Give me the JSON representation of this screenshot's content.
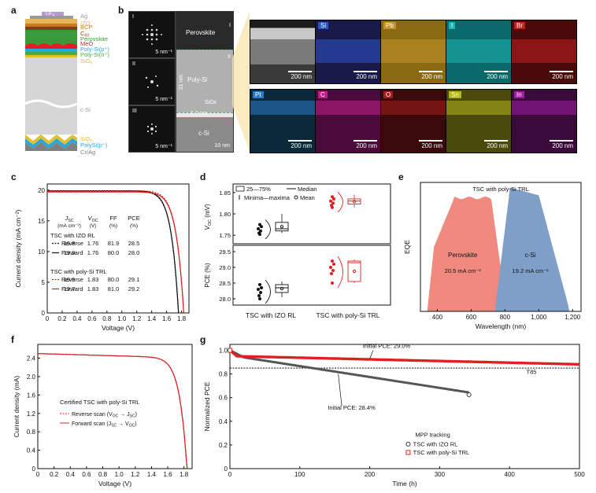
{
  "panel_labels": {
    "a": "a",
    "b": "b",
    "c": "c",
    "d": "d",
    "e": "e",
    "f": "f",
    "g": "g"
  },
  "panel_a": {
    "layers": [
      {
        "name": "LiF",
        "sub": "x",
        "color": "#b59ad6"
      },
      {
        "name": "Ag",
        "color": "#9a9a9a"
      },
      {
        "name": "IZO",
        "color": "#e7b45a"
      },
      {
        "name": "BCP",
        "color": "#cc7a22"
      },
      {
        "name": "C",
        "sub": "60",
        "color": "#8a3a1a"
      },
      {
        "name": "Perovskite",
        "color": "#3a9a3a"
      },
      {
        "name": "MeO",
        "color": "#e02020"
      },
      {
        "name": "Poly-Si(p⁺)",
        "color": "#2aa8d8"
      },
      {
        "name": "Poly-Si(n⁺)",
        "color": "#40b040"
      },
      {
        "name": "SiO",
        "sub": "x",
        "color": "#e0c030"
      },
      {
        "name": "c-Si",
        "color": "#999999"
      },
      {
        "name": "SiO",
        "sub": "x",
        "color": "#e0c030"
      },
      {
        "name": "PolySi(p⁺)",
        "color": "#2aa8d8"
      },
      {
        "name": "Cr/Ag",
        "color": "#808080"
      }
    ]
  },
  "panel_b": {
    "fft": [
      {
        "roman": "I",
        "scale": "5 nm⁻¹"
      },
      {
        "roman": "II",
        "scale": "5 nm⁻¹"
      },
      {
        "roman": "III",
        "scale": "5 nm⁻¹"
      }
    ],
    "tem": {
      "perovskite": "Perovskite",
      "polysi": "Poly-Si",
      "siox": "SiOx",
      "csi": "c-Si",
      "thick1": "31 nm",
      "thick2": "1.7 nm",
      "scale": "10 nm",
      "r1": "I",
      "r2": "II",
      "r3": "III"
    },
    "maps": [
      {
        "el": "",
        "scale": "200 nm",
        "bg": "#9a9a9a"
      },
      {
        "el": "Si",
        "scale": "200 nm",
        "bg": "#1a1a4a",
        "tag": "#2b55c7"
      },
      {
        "el": "Pb",
        "scale": "200 nm",
        "bg": "#8a6a10",
        "tag": "#c7922b"
      },
      {
        "el": "I",
        "scale": "200 nm",
        "bg": "#0a6a6a",
        "tag": "#1fb5b5"
      },
      {
        "el": "Br",
        "scale": "200 nm",
        "bg": "#4a0a0a",
        "tag": "#c21f1f"
      },
      {
        "el": "Pt",
        "scale": "200 nm",
        "bg": "#0a2a3a",
        "tag": "#2b7ac7"
      },
      {
        "el": "C",
        "scale": "200 nm",
        "bg": "#4a0a3a",
        "tag": "#c21f8a"
      },
      {
        "el": "O",
        "scale": "200 nm",
        "bg": "#3a0a0a",
        "tag": "#a01f1f"
      },
      {
        "el": "Sn",
        "scale": "200 nm",
        "bg": "#4a4a0a",
        "tag": "#b5b51f"
      },
      {
        "el": "In",
        "scale": "200 nm",
        "bg": "#3a0a3a",
        "tag": "#a01fa0"
      }
    ]
  },
  "panel_c": {
    "ylabel": "Current density (mA cm⁻²)",
    "xlabel": "Voltage (V)",
    "yticks": [
      "0",
      "5",
      "10",
      "15",
      "20"
    ],
    "xticks": [
      "0",
      "0.2",
      "0.4",
      "0.6",
      "0.8",
      "1.0",
      "1.2",
      "1.4",
      "1.6",
      "1.8"
    ],
    "headers": [
      "J",
      "V",
      "FF",
      "PCE"
    ],
    "header_subs": [
      "SC",
      "OC",
      "",
      ""
    ],
    "units": [
      "(mA cm⁻²)",
      "(V)",
      "(%)",
      "(%)"
    ],
    "group1": "TSC with IZO RL",
    "group2": "TSC with poly-Si TRL",
    "rows": [
      {
        "label": "Reverse",
        "vals": [
          "19.8",
          "1.76",
          "81.9",
          "28.5"
        ]
      },
      {
        "label": "Forward",
        "vals": [
          "19.9",
          "1.76",
          "80.0",
          "28.0"
        ]
      },
      {
        "label": "Reverse",
        "vals": [
          "19.9",
          "1.83",
          "80.0",
          "29.1"
        ]
      },
      {
        "label": "Forward",
        "vals": [
          "19.7",
          "1.83",
          "81.0",
          "29.2"
        ]
      }
    ]
  },
  "panel_d": {
    "legend_box": "25—75%",
    "legend_median": "Median",
    "legend_range": "Minima—maxima",
    "legend_mean": "Mean",
    "ylabel_top": "V",
    "ylabel_top_sub": "OC",
    "ylabel_top_unit": "(mV)",
    "ylabel_bot": "PCE (%)",
    "yticks_top": [
      "1.75",
      "1.80",
      "1.85"
    ],
    "yticks_bot": [
      "28.0",
      "28.5",
      "29.0",
      "29.5"
    ],
    "cat1": "TSC with IZO RL",
    "cat2": "TSC with poly-Si TRL"
  },
  "panel_e": {
    "title": "TSC with poly-Si TRL",
    "xlabel": "Wavelength (nm)",
    "ylabel": "EQE",
    "xticks": [
      "400",
      "600",
      "800",
      "1,000",
      "1,200"
    ],
    "left_name": "Perovskite",
    "left_val": "20.5 mA cm⁻²",
    "right_name": "c-Si",
    "right_val": "19.2 mA cm⁻²",
    "left_color": "#f08a7e",
    "right_color": "#7f9ec8"
  },
  "panel_f": {
    "ylabel": "Current density (mA)",
    "xlabel": "Voltage (V)",
    "yticks": [
      "0",
      "0.4",
      "0.8",
      "1.2",
      "1.6",
      "2.0",
      "2.4"
    ],
    "xticks": [
      "0",
      "0.2",
      "0.4",
      "0.6",
      "0.8",
      "1.0",
      "1.2",
      "1.4",
      "1.6",
      "1.8"
    ],
    "title": "Certified TSC with poly-Si TRL",
    "rev": "Reverse scan (V",
    "rev_tail": " → J",
    "fwd": "Forward scan (J",
    "fwd_tail": " → V"
  },
  "panel_g": {
    "ylabel": "Normalized PCE",
    "xlabel": "Time (h)",
    "yticks": [
      "0",
      "0.2",
      "0.4",
      "0.6",
      "0.8",
      "1.0"
    ],
    "xticks": [
      "0",
      "100",
      "200",
      "300",
      "400",
      "500"
    ],
    "ann1": "Initial PCE: 29.0%",
    "ann2": "Initial PCE: 28.4%",
    "t85": "T85",
    "legend_title": "MPP tracking",
    "leg1": "TSC with IZO RL",
    "leg2": "TSC with poly-Si TRL"
  }
}
